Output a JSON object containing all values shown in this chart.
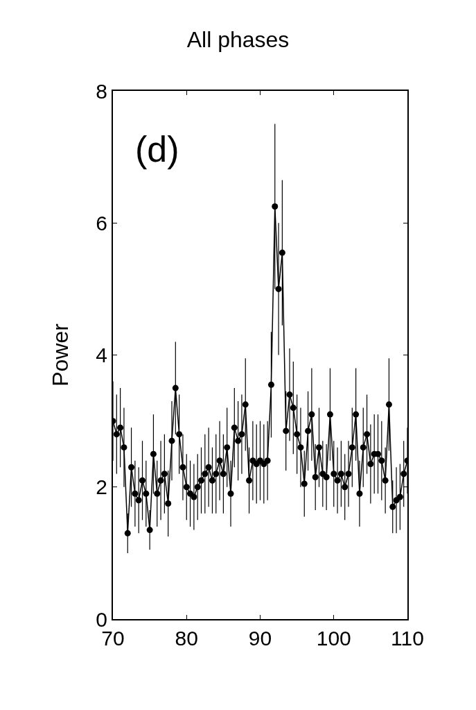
{
  "chart_data": {
    "type": "line",
    "title": "All phases",
    "ylabel": "Power",
    "annotations": [
      "(d)"
    ],
    "x": [
      70,
      70.5,
      71,
      71.5,
      72,
      72.5,
      73,
      73.5,
      74,
      74.5,
      75,
      75.5,
      76,
      76.5,
      77,
      77.5,
      78,
      78.5,
      79,
      79.5,
      80,
      80.5,
      81,
      81.5,
      82,
      82.5,
      83,
      83.5,
      84,
      84.5,
      85,
      85.5,
      86,
      86.5,
      87,
      87.5,
      88,
      88.5,
      89,
      89.5,
      90,
      90.5,
      91,
      91.5,
      92,
      92.5,
      93,
      93.5,
      94,
      94.5,
      95,
      95.5,
      96,
      96.5,
      97,
      97.5,
      98,
      98.5,
      99,
      99.5,
      100,
      100.5,
      101,
      101.5,
      102,
      102.5,
      103,
      103.5,
      104,
      104.5,
      105,
      105.5,
      106,
      106.5,
      107,
      107.5,
      108,
      108.5,
      109,
      109.5,
      110
    ],
    "series": [
      {
        "color": "#000000",
        "values": [
          3.0,
          2.8,
          2.9,
          2.6,
          1.3,
          2.3,
          1.9,
          1.8,
          2.1,
          1.9,
          1.35,
          2.5,
          1.9,
          2.1,
          2.2,
          1.75,
          2.7,
          3.5,
          2.8,
          2.3,
          2.0,
          1.9,
          1.85,
          2.0,
          2.1,
          2.2,
          2.3,
          2.1,
          2.2,
          2.4,
          2.2,
          2.6,
          1.9,
          2.9,
          2.7,
          2.8,
          3.25,
          2.1,
          2.4,
          2.35,
          2.4,
          2.35,
          2.4,
          3.55,
          6.25,
          5.0,
          5.55,
          2.85,
          3.4,
          3.2,
          2.8,
          2.6,
          2.05,
          2.85,
          3.1,
          2.15,
          2.6,
          2.2,
          2.15,
          3.1,
          2.2,
          2.1,
          2.2,
          2.0,
          2.2,
          2.6,
          3.1,
          1.9,
          2.6,
          2.8,
          2.35,
          2.5,
          2.5,
          2.4,
          2.1,
          3.25,
          1.7,
          1.8,
          1.85,
          2.2,
          2.4
        ],
        "errors": [
          0.6,
          0.6,
          0.6,
          0.6,
          0.3,
          0.6,
          0.5,
          0.5,
          0.6,
          0.5,
          0.3,
          0.6,
          0.5,
          0.6,
          0.6,
          0.5,
          0.6,
          0.7,
          0.6,
          0.5,
          0.5,
          0.5,
          0.5,
          0.5,
          0.5,
          0.6,
          0.6,
          0.5,
          0.6,
          0.6,
          0.6,
          0.6,
          0.5,
          0.6,
          0.6,
          0.6,
          0.7,
          0.5,
          0.6,
          0.6,
          0.6,
          0.6,
          0.6,
          0.8,
          1.25,
          1.0,
          1.1,
          0.6,
          0.7,
          0.7,
          0.6,
          0.6,
          0.5,
          0.6,
          0.7,
          0.5,
          0.6,
          0.5,
          0.5,
          0.7,
          0.5,
          0.5,
          0.5,
          0.5,
          0.5,
          0.6,
          0.7,
          0.5,
          0.6,
          0.6,
          0.6,
          0.6,
          0.6,
          0.6,
          0.5,
          0.7,
          0.4,
          0.5,
          0.5,
          0.5,
          0.5
        ]
      }
    ],
    "xlim": [
      70,
      110
    ],
    "xticks": [
      70,
      80,
      90,
      100,
      110
    ],
    "ylim": [
      0,
      8
    ],
    "yticks": [
      0,
      2,
      4,
      6,
      8
    ],
    "marker": "circle"
  }
}
